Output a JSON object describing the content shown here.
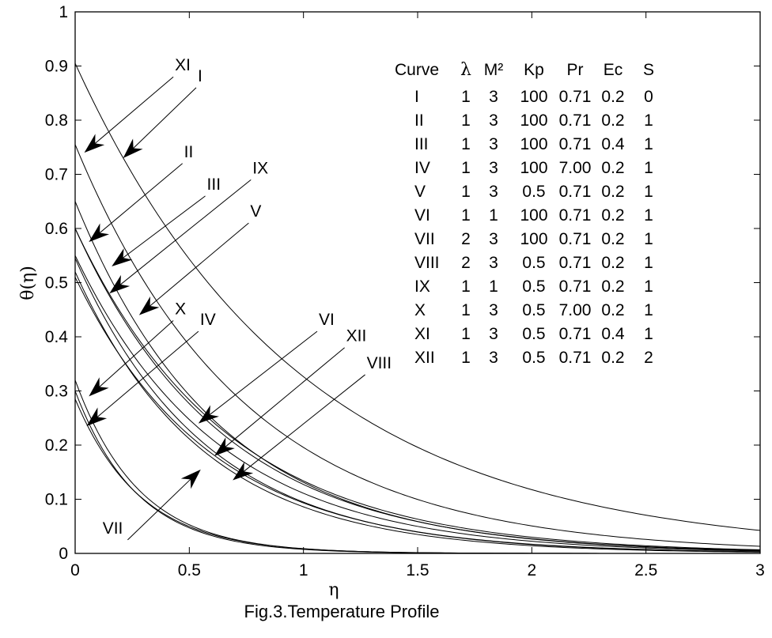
{
  "chart_data": {
    "type": "line",
    "title": "",
    "xlabel": "η",
    "ylabel": "θ(η)",
    "caption": "Fig.3.Temperature Profile",
    "xlim": [
      0,
      3
    ],
    "ylim": [
      0,
      1
    ],
    "xticks": [
      "0",
      "0.5",
      "1",
      "1.5",
      "2",
      "2.5",
      "3"
    ],
    "yticks": [
      "0",
      "0.1",
      "0.2",
      "0.3",
      "0.4",
      "0.5",
      "0.6",
      "0.7",
      "0.8",
      "0.9",
      "1"
    ],
    "grid": false,
    "series": [
      {
        "name": "I",
        "y0": 0.905,
        "decay": 1.02
      },
      {
        "name": "II",
        "y0": 0.65,
        "decay": 1.6
      },
      {
        "name": "III",
        "y0": 0.6,
        "decay": 1.55
      },
      {
        "name": "IV",
        "y0": 0.285,
        "decay": 3.5
      },
      {
        "name": "V",
        "y0": 0.55,
        "decay": 1.6
      },
      {
        "name": "VI",
        "y0": 0.545,
        "decay": 1.75
      },
      {
        "name": "VII",
        "y0": 0.3,
        "decay": 3.7
      },
      {
        "name": "VIII",
        "y0": 0.52,
        "decay": 1.8
      },
      {
        "name": "IX",
        "y0": 0.6,
        "decay": 1.5
      },
      {
        "name": "X",
        "y0": 0.32,
        "decay": 3.6
      },
      {
        "name": "XI",
        "y0": 0.755,
        "decay": 1.35
      },
      {
        "name": "XII",
        "y0": 0.51,
        "decay": 1.7
      }
    ],
    "annotations": [
      {
        "label": "XI",
        "tx": 0.43,
        "ty": 0.88,
        "ax": 0.04,
        "ay": 0.74
      },
      {
        "label": "I",
        "tx": 0.53,
        "ty": 0.86,
        "ax": 0.21,
        "ay": 0.73
      },
      {
        "label": "II",
        "tx": 0.47,
        "ty": 0.72,
        "ax": 0.06,
        "ay": 0.575
      },
      {
        "label": "III",
        "tx": 0.57,
        "ty": 0.66,
        "ax": 0.16,
        "ay": 0.53
      },
      {
        "label": "IX",
        "tx": 0.77,
        "ty": 0.69,
        "ax": 0.15,
        "ay": 0.48
      },
      {
        "label": "V",
        "tx": 0.76,
        "ty": 0.61,
        "ax": 0.28,
        "ay": 0.44
      },
      {
        "label": "X",
        "tx": 0.43,
        "ty": 0.43,
        "ax": 0.06,
        "ay": 0.29
      },
      {
        "label": "IV",
        "tx": 0.54,
        "ty": 0.41,
        "ax": 0.05,
        "ay": 0.235
      },
      {
        "label": "VI",
        "tx": 1.06,
        "ty": 0.41,
        "ax": 0.54,
        "ay": 0.24
      },
      {
        "label": "XII",
        "tx": 1.18,
        "ty": 0.38,
        "ax": 0.61,
        "ay": 0.18
      },
      {
        "label": "VIII",
        "tx": 1.27,
        "ty": 0.33,
        "ax": 0.69,
        "ay": 0.135
      },
      {
        "label": "VII",
        "tx": 0.23,
        "ty": 0.025,
        "ax": 0.55,
        "ay": 0.155
      }
    ],
    "legend_table": {
      "headers": [
        "Curve",
        "λ",
        "M²",
        "Kp",
        "Pr",
        "Ec",
        "S"
      ],
      "rows": [
        [
          "I",
          "1",
          "3",
          "100",
          "0.71",
          "0.2",
          "0"
        ],
        [
          "II",
          "1",
          "3",
          "100",
          "0.71",
          "0.2",
          "1"
        ],
        [
          "III",
          "1",
          "3",
          "100",
          "0.71",
          "0.4",
          "1"
        ],
        [
          "IV",
          "1",
          "3",
          "100",
          "7.00",
          "0.2",
          "1"
        ],
        [
          "V",
          "1",
          "3",
          "0.5",
          "0.71",
          "0.2",
          "1"
        ],
        [
          "VI",
          "1",
          "1",
          "100",
          "0.71",
          "0.2",
          "1"
        ],
        [
          "VII",
          "2",
          "3",
          "100",
          "0.71",
          "0.2",
          "1"
        ],
        [
          "VIII",
          "2",
          "3",
          "0.5",
          "0.71",
          "0.2",
          "1"
        ],
        [
          "IX",
          "1",
          "1",
          "0.5",
          "0.71",
          "0.2",
          "1"
        ],
        [
          "X",
          "1",
          "3",
          "0.5",
          "7.00",
          "0.2",
          "1"
        ],
        [
          "XI",
          "1",
          "3",
          "0.5",
          "0.71",
          "0.4",
          "1"
        ],
        [
          "XII",
          "1",
          "3",
          "0.5",
          "0.71",
          "0.2",
          "2"
        ]
      ]
    }
  }
}
